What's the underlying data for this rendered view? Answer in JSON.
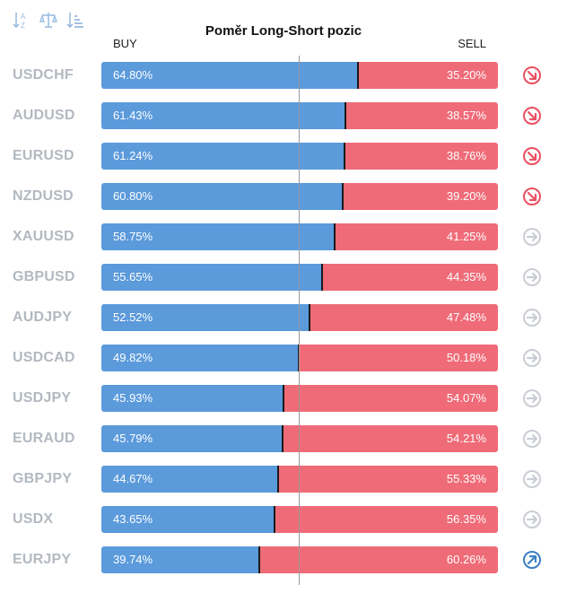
{
  "toolbar": {
    "icons": [
      "sort-alpha-icon",
      "balance-scale-icon",
      "sort-amount-icon"
    ]
  },
  "colors": {
    "buy": "#5b9adb",
    "sell": "#ef6b78",
    "symbol": "#b3b9c0",
    "trend_down": "#e9505f",
    "trend_neutral": "#c9cdd3",
    "trend_up": "#3b7fc4"
  },
  "chart_data": {
    "type": "bar",
    "stacked": true,
    "orientation": "horizontal",
    "title": "Poměr Long-Short pozic",
    "series_labels": {
      "buy": "BUY",
      "sell": "SELL"
    },
    "rows": [
      {
        "symbol": "USDCHF",
        "buy": 64.8,
        "sell": 35.2,
        "buy_label": "64.80%",
        "sell_label": "35.20%",
        "trend": "down"
      },
      {
        "symbol": "AUDUSD",
        "buy": 61.43,
        "sell": 38.57,
        "buy_label": "61.43%",
        "sell_label": "38.57%",
        "trend": "down"
      },
      {
        "symbol": "EURUSD",
        "buy": 61.24,
        "sell": 38.76,
        "buy_label": "61.24%",
        "sell_label": "38.76%",
        "trend": "down"
      },
      {
        "symbol": "NZDUSD",
        "buy": 60.8,
        "sell": 39.2,
        "buy_label": "60.80%",
        "sell_label": "39.20%",
        "trend": "down"
      },
      {
        "symbol": "XAUUSD",
        "buy": 58.75,
        "sell": 41.25,
        "buy_label": "58.75%",
        "sell_label": "41.25%",
        "trend": "neutral"
      },
      {
        "symbol": "GBPUSD",
        "buy": 55.65,
        "sell": 44.35,
        "buy_label": "55.65%",
        "sell_label": "44.35%",
        "trend": "neutral"
      },
      {
        "symbol": "AUDJPY",
        "buy": 52.52,
        "sell": 47.48,
        "buy_label": "52.52%",
        "sell_label": "47.48%",
        "trend": "neutral"
      },
      {
        "symbol": "USDCAD",
        "buy": 49.82,
        "sell": 50.18,
        "buy_label": "49.82%",
        "sell_label": "50.18%",
        "trend": "neutral"
      },
      {
        "symbol": "USDJPY",
        "buy": 45.93,
        "sell": 54.07,
        "buy_label": "45.93%",
        "sell_label": "54.07%",
        "trend": "neutral"
      },
      {
        "symbol": "EURAUD",
        "buy": 45.79,
        "sell": 54.21,
        "buy_label": "45.79%",
        "sell_label": "54.21%",
        "trend": "neutral"
      },
      {
        "symbol": "GBPJPY",
        "buy": 44.67,
        "sell": 55.33,
        "buy_label": "44.67%",
        "sell_label": "55.33%",
        "trend": "neutral"
      },
      {
        "symbol": "USDX",
        "buy": 43.65,
        "sell": 56.35,
        "buy_label": "43.65%",
        "sell_label": "56.35%",
        "trend": "neutral"
      },
      {
        "symbol": "EURJPY",
        "buy": 39.74,
        "sell": 60.26,
        "buy_label": "39.74%",
        "sell_label": "60.26%",
        "trend": "up"
      }
    ]
  }
}
